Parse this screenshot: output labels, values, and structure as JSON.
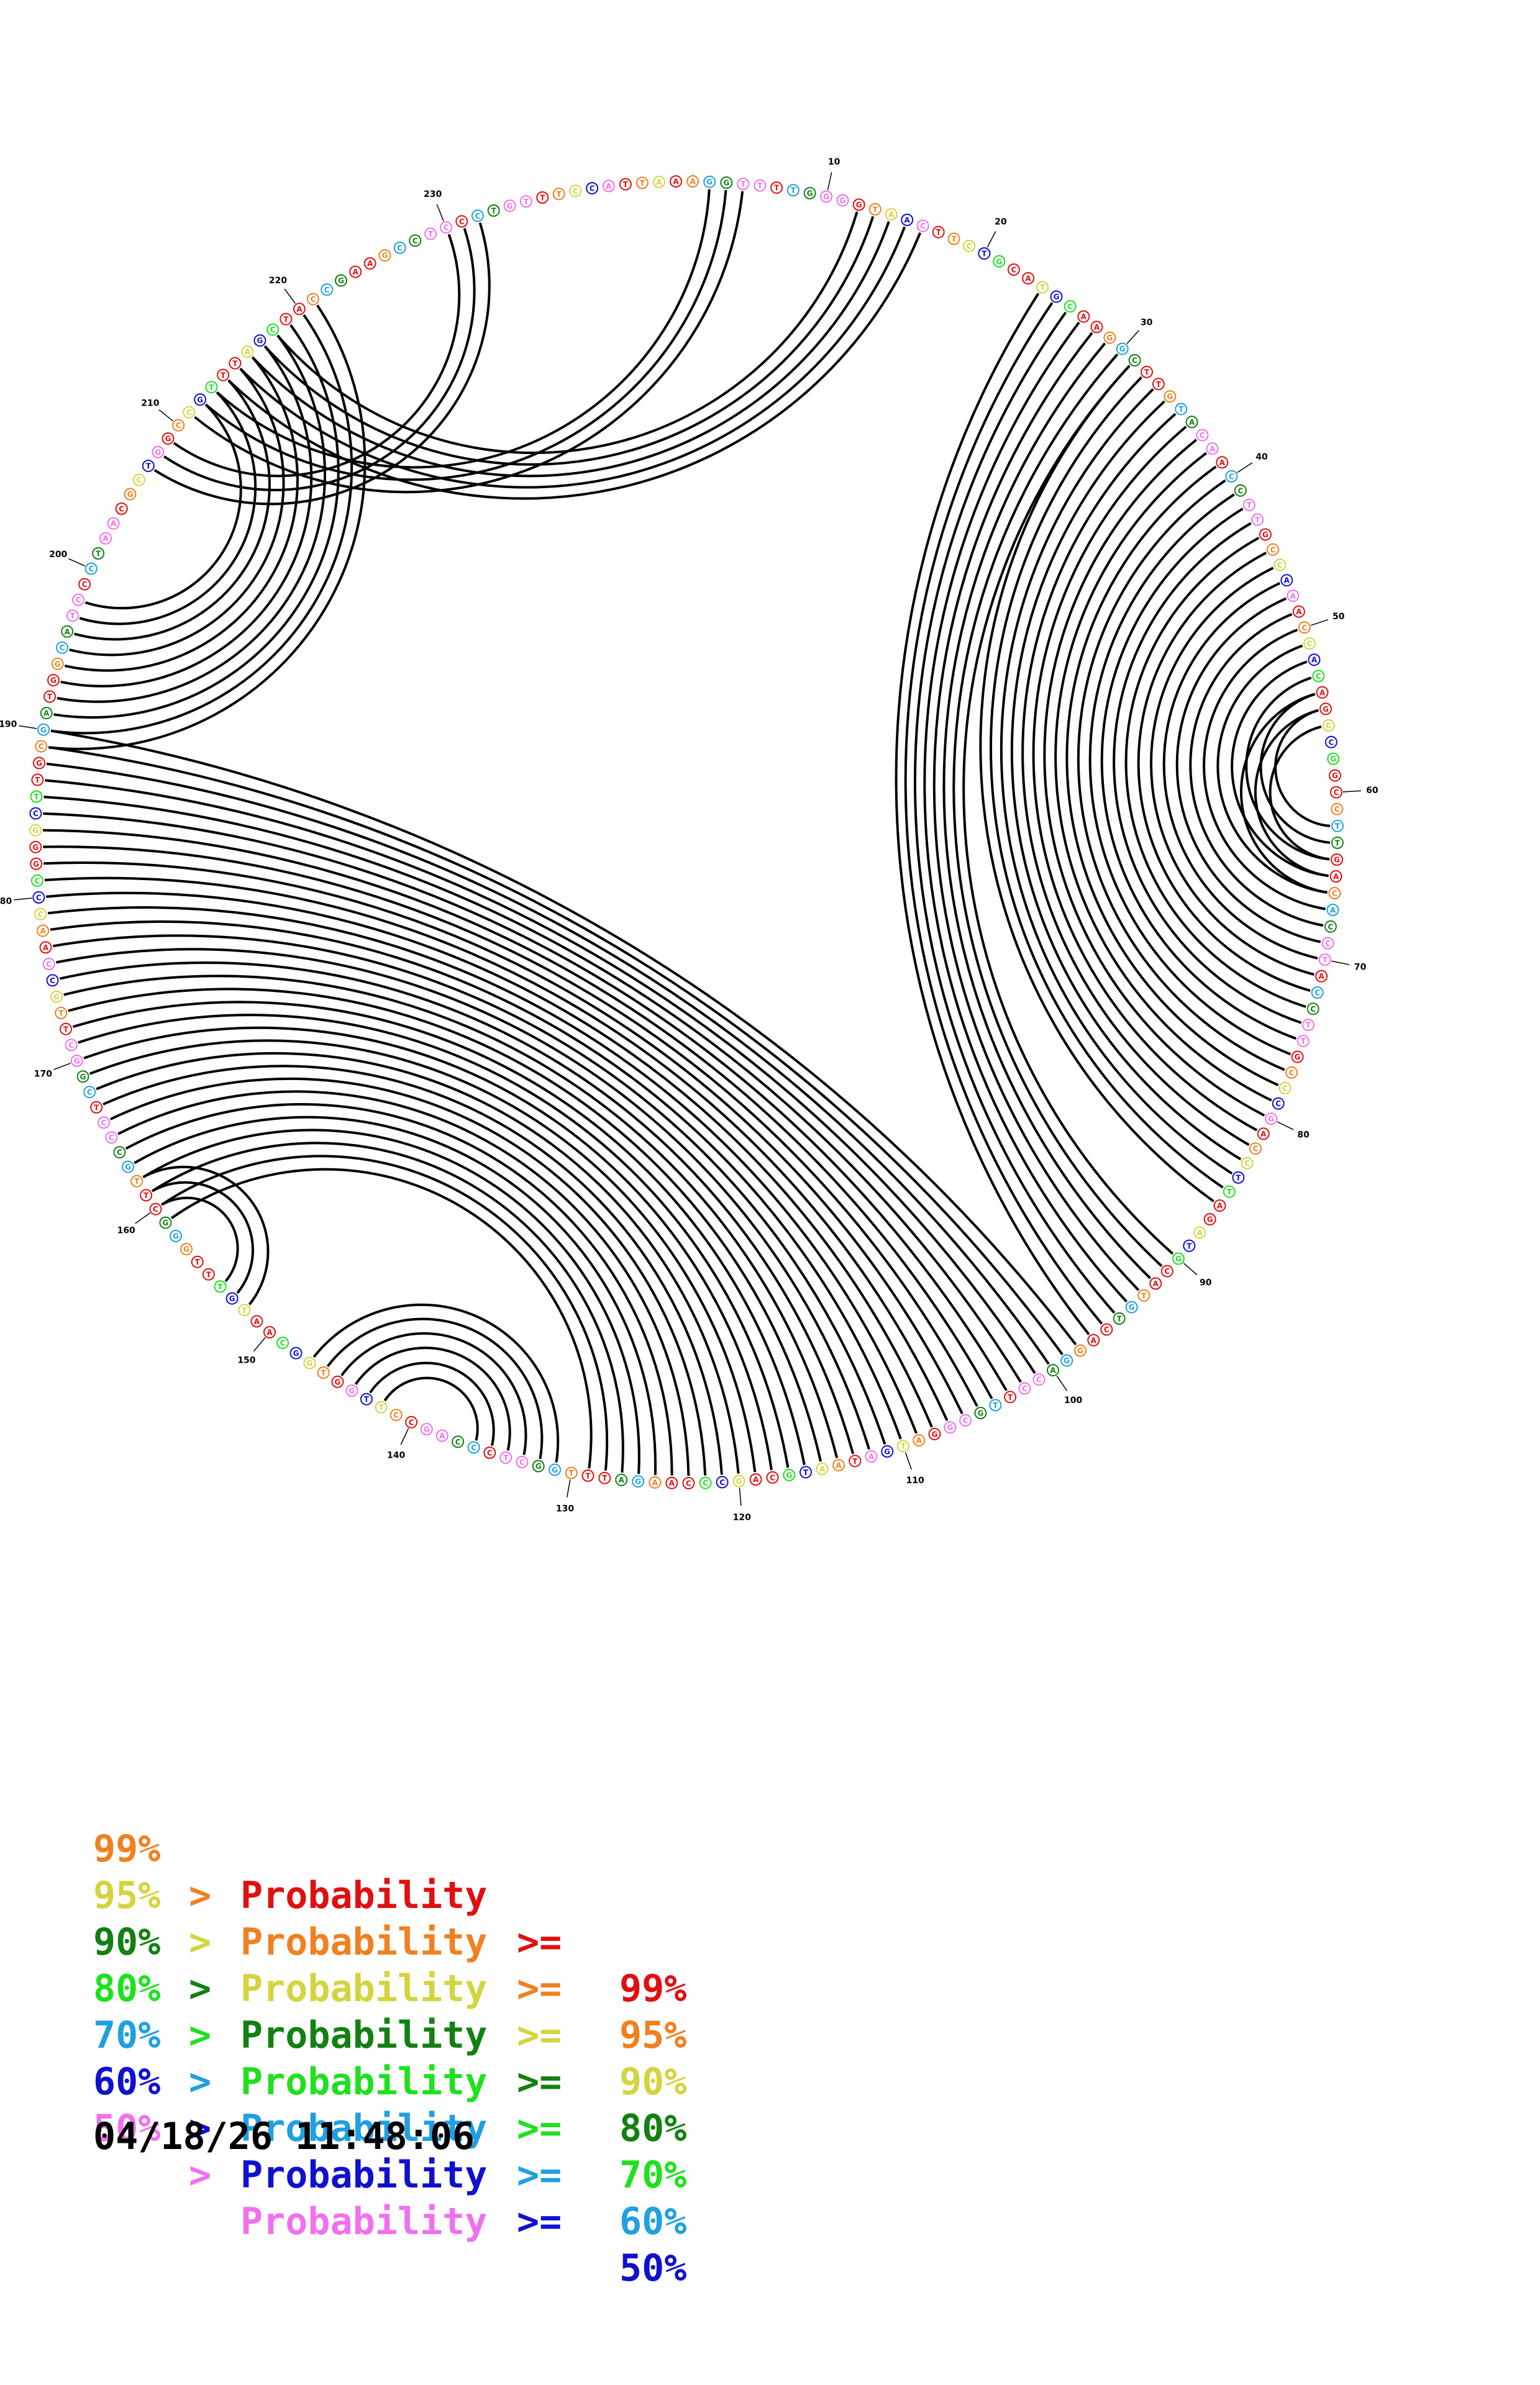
{
  "diagram": {
    "sequence": "AAGGTTTTGGGGTAACTTCTGCATGCAAGGCTTGTACAACCTTGCCAAACCACAGCCGGCCTTGACACCTACCTTGCCCGACCTTAGATGCATGTCAGGACCTTGCGGATGATAATGCAGCCCAAGATTTGGCTCCCAGCCTTGGTGGCAATGTTTGGGCTTGCCCTCGGCTTGCCAACCCGGGCTTGCGATGGCATCCCTAACGCTGGCCGTTTAGCTACCGAAGCCTCCCTGTTTCCATTA",
    "tick_labels": [
      "10",
      "20",
      "30",
      "40",
      "50",
      "60",
      "70",
      "80",
      "90",
      "100",
      "110",
      "120",
      "130",
      "140",
      "150",
      "160",
      "170",
      "180",
      "190",
      "200",
      "210",
      "220",
      "230"
    ],
    "pairs": [
      {
        "i": 24,
        "j": 97,
        "n": 8
      },
      {
        "i": 31,
        "j": 86,
        "n": 25
      },
      {
        "i": 54,
        "j": 66,
        "n": 3
      },
      {
        "i": 98,
        "j": 190,
        "n": 32
      },
      {
        "i": 131,
        "j": 147,
        "n": 6
      },
      {
        "i": 152,
        "j": 162,
        "n": 3
      },
      {
        "i": 3,
        "j": 213,
        "n": 3
      },
      {
        "i": 12,
        "j": 218,
        "n": 5
      },
      {
        "i": 189,
        "j": 221,
        "n": 10
      },
      {
        "i": 207,
        "j": 232,
        "n": 3
      }
    ],
    "colors": {
      "p99": "#e01010",
      "p95": "#f08020",
      "p90": "#d4d440",
      "p80": "#128012",
      "p70": "#20e020",
      "p60": "#20a0e0",
      "p50": "#1010d0",
      "p0": "#f070f0",
      "arc": "#000000"
    }
  },
  "legend": [
    {
      "low": "",
      "gt": "",
      "label": "Probability",
      "ge": ">=",
      "high": "99%",
      "color": "#e01010"
    },
    {
      "low": "99%",
      "gt": ">",
      "label": "Probability",
      "ge": ">=",
      "high": "95%",
      "color": "#f08020"
    },
    {
      "low": "95%",
      "gt": ">",
      "label": "Probability",
      "ge": ">=",
      "high": "90%",
      "color": "#d4d440"
    },
    {
      "low": "90%",
      "gt": ">",
      "label": "Probability",
      "ge": ">=",
      "high": "80%",
      "color": "#128012"
    },
    {
      "low": "80%",
      "gt": ">",
      "label": "Probability",
      "ge": ">=",
      "high": "70%",
      "color": "#20e020"
    },
    {
      "low": "70%",
      "gt": ">",
      "label": "Probability",
      "ge": ">=",
      "high": "60%",
      "color": "#20a0e0"
    },
    {
      "low": "60%",
      "gt": ">",
      "label": "Probability",
      "ge": ">=",
      "high": "50%",
      "color": "#1010d0"
    },
    {
      "low": "50%",
      "gt": ">",
      "label": "Probability",
      "ge": "",
      "high": "",
      "color": "#f070f0"
    }
  ],
  "timestamp": "04/18/26 11:48:06"
}
